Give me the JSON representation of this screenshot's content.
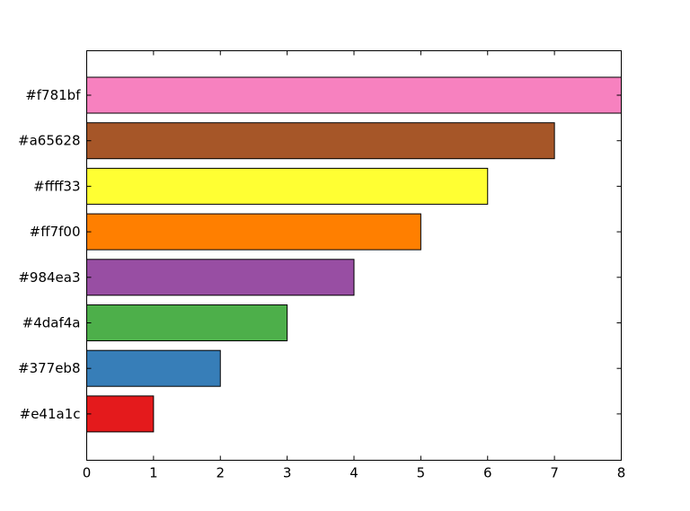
{
  "chart_data": {
    "type": "bar",
    "orientation": "horizontal",
    "categories": [
      "#e41a1c",
      "#377eb8",
      "#4daf4a",
      "#984ea3",
      "#ff7f00",
      "#ffff33",
      "#a65628",
      "#f781bf"
    ],
    "values": [
      1,
      2,
      3,
      4,
      5,
      6,
      7,
      8
    ],
    "colors": [
      "#e41a1c",
      "#377eb8",
      "#4daf4a",
      "#984ea3",
      "#ff7f00",
      "#ffff33",
      "#a65628",
      "#f781bf"
    ],
    "x_ticks": [
      0,
      1,
      2,
      3,
      4,
      5,
      6,
      7,
      8
    ],
    "xlim": [
      0,
      8
    ],
    "title": "",
    "xlabel": "",
    "ylabel": "",
    "grid": false,
    "legend": "none"
  }
}
